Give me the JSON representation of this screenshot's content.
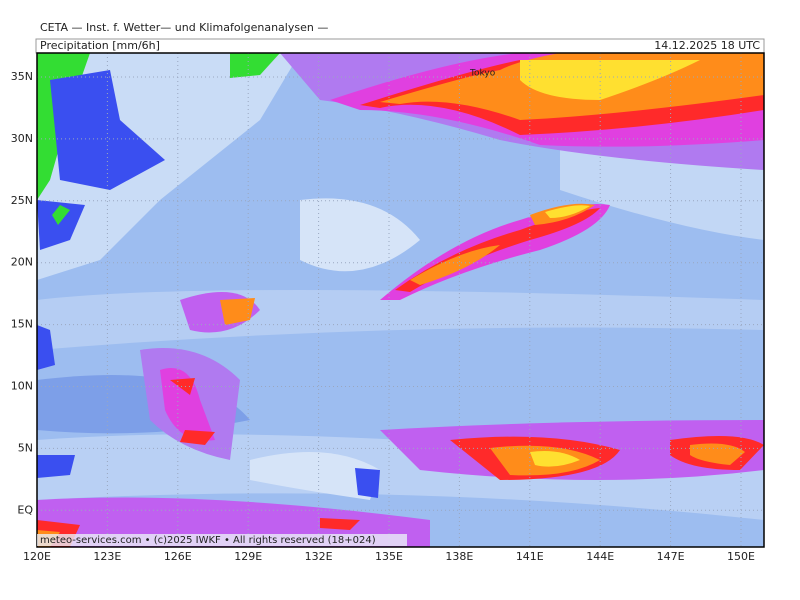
{
  "header": {
    "institute": "CETA — Inst. f. Wetter— und Klimafolgenanalysen —",
    "title": "Precipitation [mm/6h]",
    "date": "14.12.2025 18 UTC"
  },
  "map": {
    "lat_labels": [
      "35N",
      "30N",
      "25N",
      "20N",
      "15N",
      "10N",
      "5N",
      "EQ"
    ],
    "lon_labels": [
      "120E",
      "123E",
      "126E",
      "129E",
      "132E",
      "135E",
      "138E",
      "141E",
      "144E",
      "147E",
      "150E"
    ],
    "city": "Tokyo",
    "footer": "meteo-services.com • (c)2025 IWKF • All rights reserved (18+024)"
  }
}
